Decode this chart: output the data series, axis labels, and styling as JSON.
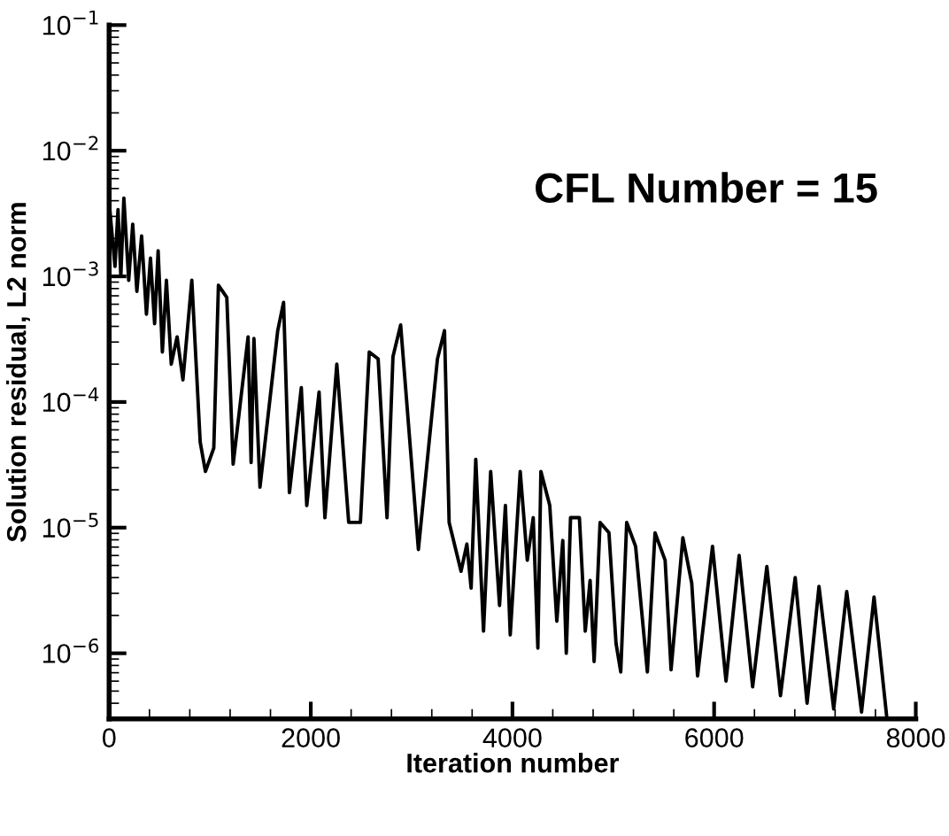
{
  "chart_data": {
    "type": "line",
    "xlabel": "Iteration number",
    "ylabel": "Solution residual, L2 norm",
    "annotations": [
      "CFL Number = 15"
    ],
    "log": "y",
    "grid": false,
    "legend": false,
    "marker": "none",
    "line_style": "solid",
    "xlim": [
      0,
      8000
    ],
    "xticks": [
      0,
      2000,
      4000,
      6000,
      8000
    ],
    "ylim": [
      3e-07,
      0.1
    ],
    "yticks": [
      {
        "value": 1e-06,
        "label": "10$^{−6}$"
      },
      {
        "value": 1e-05,
        "label": "10$^{−5}$"
      },
      {
        "value": 0.0001,
        "label": "10$^{−4}$"
      },
      {
        "value": 0.001,
        "label": "10$^{−3}$"
      },
      {
        "value": 0.01,
        "label": "10$^{−2}$"
      },
      {
        "value": 0.1,
        "label": "10$^{−1}$"
      }
    ],
    "series": [
      {
        "color": "#000000",
        "x": [
          0,
          58,
          88,
          116,
          146,
          194,
          234,
          275,
          322,
          370,
          410,
          451,
          486,
          528,
          568,
          616,
          674,
          732,
          820,
          903,
          955,
          1038,
          1084,
          1167,
          1230,
          1378,
          1408,
          1436,
          1496,
          1672,
          1730,
          1788,
          1906,
          1960,
          2082,
          2140,
          2258,
          2376,
          2492,
          2580,
          2668,
          2756,
          2815,
          2891,
          3067,
          3256,
          3326,
          3372,
          3490,
          3548,
          3590,
          3636,
          3713,
          3784,
          3872,
          3930,
          3978,
          4077,
          4147,
          4206,
          4252,
          4282,
          4370,
          4440,
          4499,
          4534,
          4576,
          4664,
          4722,
          4770,
          4810,
          4869,
          4957,
          5027,
          5074,
          5133,
          5221,
          5338,
          5414,
          5514,
          5573,
          5690,
          5778,
          5836,
          5984,
          6118,
          6248,
          6382,
          6523,
          6658,
          6804,
          6922,
          7040,
          7186,
          7315,
          7462,
          7586,
          7714
        ],
        "values": [
          0.0039,
          0.0012,
          0.0034,
          0.001,
          0.0042,
          0.00093,
          0.0026,
          0.00076,
          0.0021,
          0.0005,
          0.0014,
          0.00042,
          0.0016,
          0.00025,
          0.00093,
          0.0002,
          0.00033,
          0.00015,
          0.00093,
          4.8e-05,
          2.8e-05,
          4.3e-05,
          0.00085,
          0.00068,
          3.2e-05,
          0.00033,
          3.3e-05,
          0.00032,
          2.1e-05,
          0.00037,
          0.00062,
          1.9e-05,
          0.00013,
          1.5e-05,
          0.00012,
          1.2e-05,
          0.0002,
          1.1e-05,
          1.1e-05,
          0.00025,
          0.00022,
          1.2e-05,
          0.00023,
          0.00041,
          6.7e-06,
          0.00022,
          0.00037,
          1.1e-05,
          4.5e-06,
          7.4e-06,
          3.3e-06,
          3.5e-05,
          1.5e-06,
          2.8e-05,
          2.4e-06,
          1.5e-05,
          1.4e-06,
          2.8e-05,
          5.5e-06,
          1.2e-05,
          1.1e-06,
          2.8e-05,
          1.5e-05,
          1.8e-06,
          7.9e-06,
          1e-06,
          1.2e-05,
          1.2e-05,
          1.5e-06,
          3.8e-06,
          8.6e-07,
          1.1e-05,
          9.1e-06,
          1.2e-06,
          7.1e-07,
          1.1e-05,
          7.1e-06,
          7.1e-07,
          9.1e-06,
          5.5e-06,
          7.4e-07,
          8.3e-06,
          3.6e-06,
          6.6e-07,
          7.1e-06,
          6e-07,
          6e-06,
          5.4e-07,
          4.9e-06,
          4.6e-07,
          4e-06,
          4e-07,
          3.4e-06,
          3.6e-07,
          3.1e-06,
          3.4e-07,
          2.8e-06,
          3e-07
        ]
      }
    ]
  }
}
